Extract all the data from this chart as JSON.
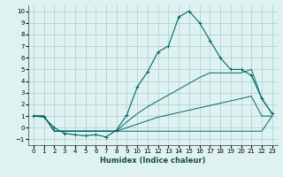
{
  "xlabel": "Humidex (Indice chaleur)",
  "x": [
    0,
    1,
    2,
    3,
    4,
    5,
    6,
    7,
    8,
    9,
    10,
    11,
    12,
    13,
    14,
    15,
    16,
    17,
    18,
    19,
    20,
    21,
    22,
    23
  ],
  "main_curve": [
    1,
    0.9,
    0.0,
    -0.5,
    -0.6,
    -0.7,
    -0.6,
    -0.8,
    -0.2,
    1.1,
    3.5,
    4.8,
    6.5,
    7.0,
    9.5,
    10.0,
    9.0,
    7.5,
    6.0,
    5.0,
    5.0,
    4.5,
    2.5,
    1.2
  ],
  "line_flat": [
    1,
    1,
    -0.3,
    -0.3,
    -0.3,
    -0.3,
    -0.3,
    -0.3,
    -0.3,
    -0.3,
    -0.3,
    -0.3,
    -0.3,
    -0.3,
    -0.3,
    -0.3,
    -0.3,
    -0.3,
    -0.3,
    -0.3,
    -0.3,
    -0.3,
    -0.3,
    1.0
  ],
  "line_upper": [
    1,
    1,
    -0.3,
    -0.3,
    -0.3,
    -0.3,
    -0.3,
    -0.3,
    -0.3,
    0.5,
    1.2,
    1.8,
    2.3,
    2.8,
    3.3,
    3.8,
    4.3,
    4.7,
    4.7,
    4.7,
    4.7,
    5.0,
    2.5,
    1.2
  ],
  "line_lower": [
    1,
    1,
    -0.3,
    -0.3,
    -0.3,
    -0.3,
    -0.3,
    -0.3,
    -0.3,
    0.0,
    0.3,
    0.6,
    0.9,
    1.1,
    1.3,
    1.5,
    1.7,
    1.9,
    2.1,
    2.3,
    2.5,
    2.7,
    1.0,
    1.0
  ],
  "color": "#006666",
  "bg_color": "#dff2f2",
  "grid_color": "#aacccc",
  "ylim": [
    -1.5,
    10.5
  ],
  "xlim": [
    -0.5,
    23.5
  ],
  "yticks": [
    -1,
    0,
    1,
    2,
    3,
    4,
    5,
    6,
    7,
    8,
    9,
    10
  ],
  "xticks": [
    0,
    1,
    2,
    3,
    4,
    5,
    6,
    7,
    8,
    9,
    10,
    11,
    12,
    13,
    14,
    15,
    16,
    17,
    18,
    19,
    20,
    21,
    22,
    23
  ],
  "xlabel_fontsize": 6.0,
  "tick_fontsize": 5.0
}
